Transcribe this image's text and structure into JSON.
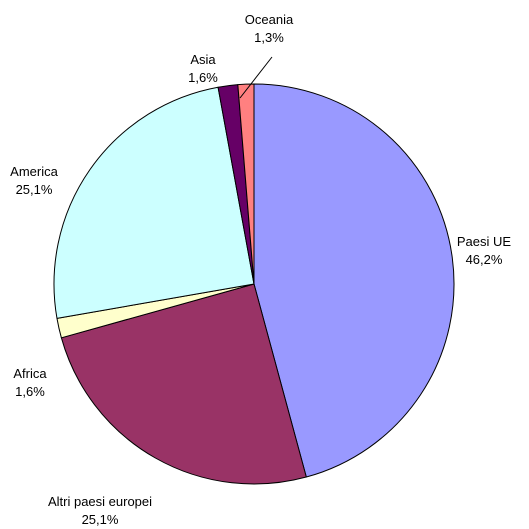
{
  "chart_data": {
    "type": "pie",
    "start": "top",
    "direction": "clockwise",
    "title": "",
    "slices": [
      {
        "label": "Paesi  UE",
        "value_label": "46,2%",
        "value": 46.2,
        "color": "#9999ff"
      },
      {
        "label": "Altri paesi europei",
        "value_label": "25,1%",
        "value": 25.1,
        "color": "#993366"
      },
      {
        "label": "Africa",
        "value_label": "1,6%",
        "value": 1.6,
        "color": "#ffffcc"
      },
      {
        "label": "America",
        "value_label": "25,1%",
        "value": 25.1,
        "color": "#ccffff"
      },
      {
        "label": "Asia",
        "value_label": "1,6%",
        "value": 1.6,
        "color": "#660066"
      },
      {
        "label": "Oceania",
        "value_label": "1,3%",
        "value": 1.3,
        "color": "#ff8080"
      }
    ]
  }
}
